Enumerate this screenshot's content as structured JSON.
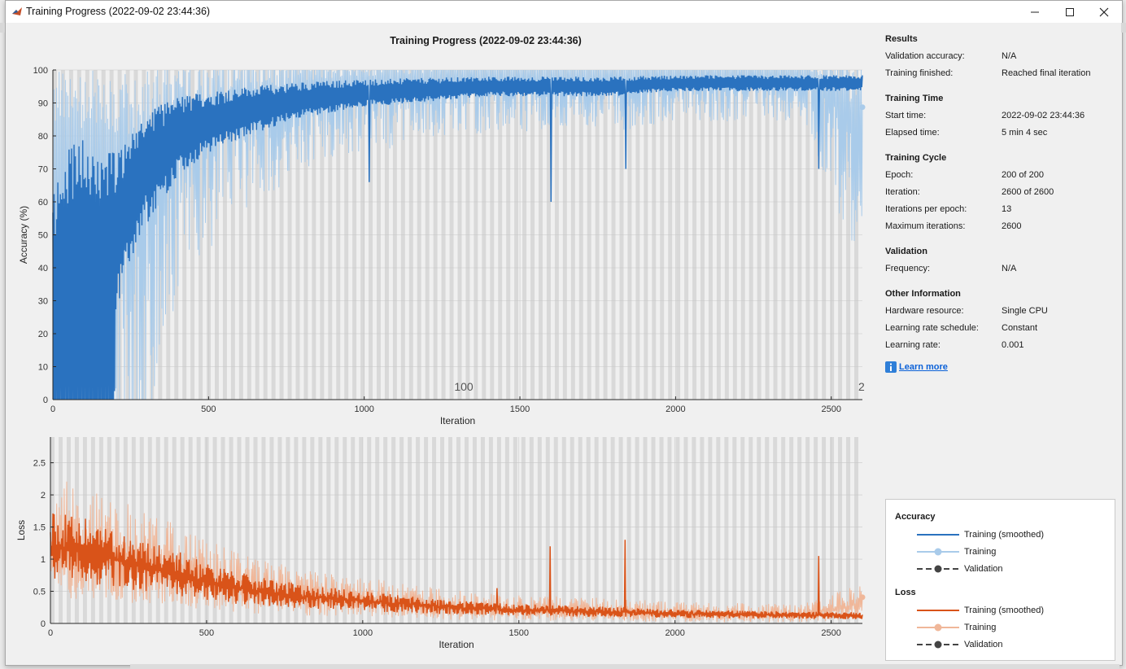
{
  "window": {
    "title": "Training Progress (2022-09-02 23:44:36)",
    "icon": "matlab-icon",
    "controls": {
      "minimize": "minimize-icon",
      "maximize": "maximize-icon",
      "close": "close-icon"
    }
  },
  "plot_title": "Training Progress (2022-09-02 23:44:36)",
  "accuracy_plot": {
    "ylabel": "Accuracy (%)",
    "xlabel": "Iteration",
    "yticks": [
      "0",
      "10",
      "20",
      "30",
      "40",
      "50",
      "60",
      "70",
      "80",
      "90",
      "100"
    ],
    "xticks": [
      "0",
      "500",
      "1000",
      "1500",
      "2000",
      "2500"
    ],
    "epoch_labels": [
      "100",
      "2"
    ]
  },
  "loss_plot": {
    "ylabel": "Loss",
    "xlabel": "Iteration",
    "yticks": [
      "0",
      "0.5",
      "1",
      "1.5",
      "2",
      "2.5"
    ],
    "xticks": [
      "0",
      "500",
      "1000",
      "1500",
      "2000",
      "2500"
    ]
  },
  "info": {
    "results": {
      "heading": "Results",
      "rows": [
        {
          "k": "Validation accuracy:",
          "v": "N/A"
        },
        {
          "k": "Training finished:",
          "v": "Reached final iteration"
        }
      ]
    },
    "time": {
      "heading": "Training Time",
      "rows": [
        {
          "k": "Start time:",
          "v": "2022-09-02 23:44:36"
        },
        {
          "k": "Elapsed time:",
          "v": "5 min 4 sec"
        }
      ]
    },
    "cycle": {
      "heading": "Training Cycle",
      "rows": [
        {
          "k": "Epoch:",
          "v": "200 of 200"
        },
        {
          "k": "Iteration:",
          "v": "2600 of 2600"
        },
        {
          "k": "Iterations per epoch:",
          "v": "13"
        },
        {
          "k": "Maximum iterations:",
          "v": "2600"
        }
      ]
    },
    "validation": {
      "heading": "Validation",
      "rows": [
        {
          "k": "Frequency:",
          "v": "N/A"
        }
      ]
    },
    "other": {
      "heading": "Other Information",
      "rows": [
        {
          "k": "Hardware resource:",
          "v": "Single CPU"
        },
        {
          "k": "Learning rate schedule:",
          "v": "Constant"
        },
        {
          "k": "Learning rate:",
          "v": "0.001"
        }
      ]
    },
    "learn_more": "Learn more",
    "learn_more_icon": "info-icon"
  },
  "legend": {
    "accuracy": {
      "heading": "Accuracy",
      "items": [
        "Training (smoothed)",
        "Training",
        "Validation"
      ]
    },
    "loss": {
      "heading": "Loss",
      "items": [
        "Training (smoothed)",
        "Training",
        "Validation"
      ]
    }
  },
  "colors": {
    "acc_smoothed": "#2a72bf",
    "acc_raw": "#a9cbea",
    "loss_smoothed": "#d95319",
    "loss_raw": "#f0b799",
    "validation": "#444444",
    "epoch_band": "#d9d9d9"
  },
  "chart_data": [
    {
      "type": "line",
      "xlabel": "Iteration",
      "ylabel": "Accuracy (%)",
      "xlim": [
        0,
        2600
      ],
      "ylim": [
        0,
        100
      ],
      "grid": true,
      "series": [
        {
          "name": "Training (smoothed)",
          "x": [
            0,
            50,
            100,
            150,
            200,
            250,
            300,
            350,
            400,
            500,
            600,
            700,
            800,
            1000,
            1200,
            1400,
            1600,
            1800,
            2000,
            2200,
            2400,
            2600
          ],
          "y": [
            20,
            40,
            45,
            45,
            50,
            62,
            70,
            75,
            80,
            84,
            87,
            89,
            91,
            93,
            94,
            95,
            95,
            95,
            96,
            96,
            96,
            96
          ]
        },
        {
          "name": "Training",
          "x": [
            0,
            200,
            400,
            600,
            800,
            1000,
            1200,
            1400,
            1600,
            1800,
            2000,
            2200,
            2400,
            2600
          ],
          "y": [
            30,
            55,
            80,
            88,
            92,
            94,
            95,
            96,
            96,
            96,
            97,
            97,
            97,
            83
          ]
        }
      ]
    },
    {
      "type": "line",
      "xlabel": "Iteration",
      "ylabel": "Loss",
      "xlim": [
        0,
        2600
      ],
      "ylim": [
        0,
        2.9
      ],
      "grid": true,
      "series": [
        {
          "name": "Training (smoothed)",
          "x": [
            0,
            100,
            200,
            300,
            400,
            500,
            600,
            700,
            800,
            1000,
            1200,
            1400,
            1600,
            1800,
            2000,
            2200,
            2400,
            2600
          ],
          "y": [
            1.2,
            1.15,
            1.0,
            0.9,
            0.8,
            0.65,
            0.55,
            0.48,
            0.42,
            0.35,
            0.28,
            0.22,
            0.2,
            0.18,
            0.15,
            0.14,
            0.13,
            0.12
          ]
        },
        {
          "name": "Training",
          "x": [
            0,
            200,
            400,
            600,
            800,
            1000,
            1200,
            1400,
            1600,
            1800,
            2000,
            2200,
            2400,
            2600
          ],
          "y": [
            1.2,
            1.0,
            0.8,
            0.55,
            0.42,
            0.35,
            0.28,
            0.22,
            0.2,
            0.18,
            0.15,
            0.14,
            0.13,
            0.3
          ]
        }
      ]
    }
  ]
}
